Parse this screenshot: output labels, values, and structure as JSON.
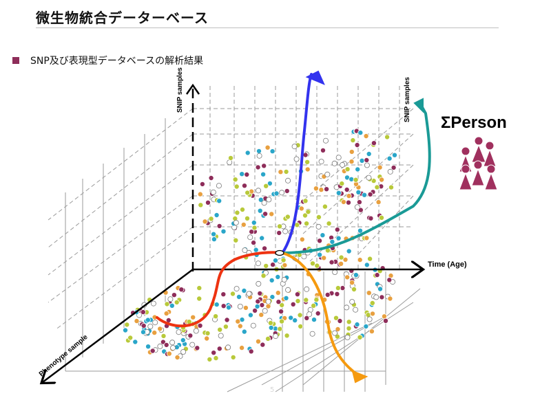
{
  "slide": {
    "title": "微生物統合データーベース",
    "bullet": "SNP及び表現型データベースの解析結果",
    "page_number": "5"
  },
  "diagram": {
    "axis_labels": {
      "time": "Time (Age)",
      "snp_vertical": "SNIP samples",
      "snp_far": "SNIP samples",
      "phenotype": "Phenotype sample"
    },
    "sum_label": "ΣPerson",
    "colors": {
      "blue_arrow": "#3333ee",
      "teal_arrow": "#1a9a96",
      "red_curve": "#ee3311",
      "orange_arrow": "#f59a10",
      "dot_teal": "#2aa6c9",
      "dot_olive": "#b8c93a",
      "dot_orange": "#e8a040",
      "dot_maroon": "#8e2d5a",
      "person": "#a0305e",
      "grid": "#9a9a9a"
    }
  }
}
